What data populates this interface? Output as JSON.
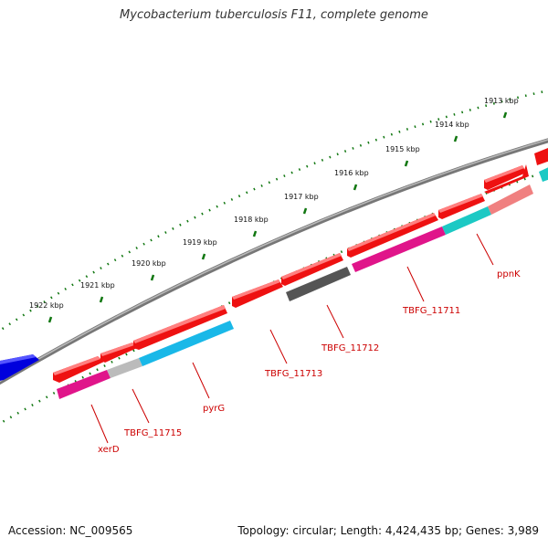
{
  "title": "Mycobacterium tuberculosis F11, complete genome",
  "footer": {
    "accession": "Accession: NC_009565",
    "topology": "Topology: circular; Length: 4,424,435 bp; Genes: 3,989"
  },
  "ruler": {
    "ticks": [
      "1913 kbp",
      "1914 kbp",
      "1915 kbp",
      "1916 kbp",
      "1917 kbp",
      "1918 kbp",
      "1919 kbp",
      "1920 kbp",
      "1921 kbp",
      "1922 kbp"
    ]
  },
  "genes": [
    {
      "label": "xerD"
    },
    {
      "label": "TBFG_11715"
    },
    {
      "label": "pyrG"
    },
    {
      "label": "TBFG_11713"
    },
    {
      "label": "TBFG_11712"
    },
    {
      "label": "TBFG_11711"
    },
    {
      "label": "ppnK"
    }
  ],
  "colors": {
    "cds": "#ee1111",
    "blue_feature": "#0000dd",
    "backbone": "#777777",
    "ruler": "#117711",
    "magenta": "#e0158a",
    "cyan": "#19b8e8",
    "teal": "#1cc9c4",
    "dark_grey": "#555555",
    "light_grey": "#bbbbbb",
    "salmon": "#f08080",
    "label": "#cc0000"
  }
}
